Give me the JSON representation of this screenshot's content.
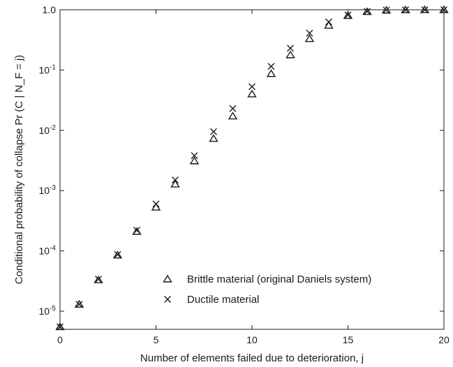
{
  "chart_data": {
    "type": "scatter",
    "xlabel": "Number of elements failed due to deterioration, j",
    "ylabel": "Conditional probability of collapse Pr (C | N_F = j)",
    "x_scale": "linear",
    "y_scale": "log",
    "xlim": [
      0,
      20
    ],
    "ylim": [
      5e-06,
      1.0
    ],
    "x_ticks": [
      0,
      5,
      10,
      15,
      20
    ],
    "x_tick_labels": [
      "0",
      "5",
      "10",
      "15",
      "20"
    ],
    "y_ticks": [
      1e-05,
      0.0001,
      0.001,
      0.01,
      0.1,
      1.0
    ],
    "y_tick_labels": [
      "10-5",
      "10-4",
      "10-3",
      "10-2",
      "10-1",
      "1.0"
    ],
    "grid": false,
    "legend_position": "bottom-right",
    "series": [
      {
        "name": "Brittle material (original Daniels system)",
        "marker": "triangle",
        "x": [
          0,
          1,
          2,
          3,
          4,
          5,
          6,
          7,
          8,
          9,
          10,
          11,
          12,
          13,
          14,
          15,
          16,
          17,
          18,
          19,
          20
        ],
        "y": [
          5.5e-06,
          1.3e-05,
          3.3e-05,
          8.5e-05,
          0.00021,
          0.00053,
          0.00128,
          0.0031,
          0.0073,
          0.0172,
          0.04,
          0.087,
          0.178,
          0.33,
          0.55,
          0.8,
          0.93,
          0.98,
          0.995,
          0.999,
          1.0
        ]
      },
      {
        "name": "Ductile material",
        "marker": "cross",
        "x": [
          0,
          1,
          2,
          3,
          4,
          5,
          6,
          7,
          8,
          9,
          10,
          11,
          12,
          13,
          14,
          15,
          16,
          17,
          18,
          19,
          20
        ],
        "y": [
          5.5e-06,
          1.3e-05,
          3.4e-05,
          8.7e-05,
          0.00022,
          0.0006,
          0.0015,
          0.0038,
          0.0095,
          0.023,
          0.053,
          0.115,
          0.23,
          0.41,
          0.63,
          0.82,
          0.94,
          0.985,
          0.997,
          0.999,
          1.0
        ]
      }
    ]
  },
  "style": {
    "axis_color": "#1a1a1a",
    "marker_color": "#1a1a1a",
    "background": "#ffffff"
  }
}
